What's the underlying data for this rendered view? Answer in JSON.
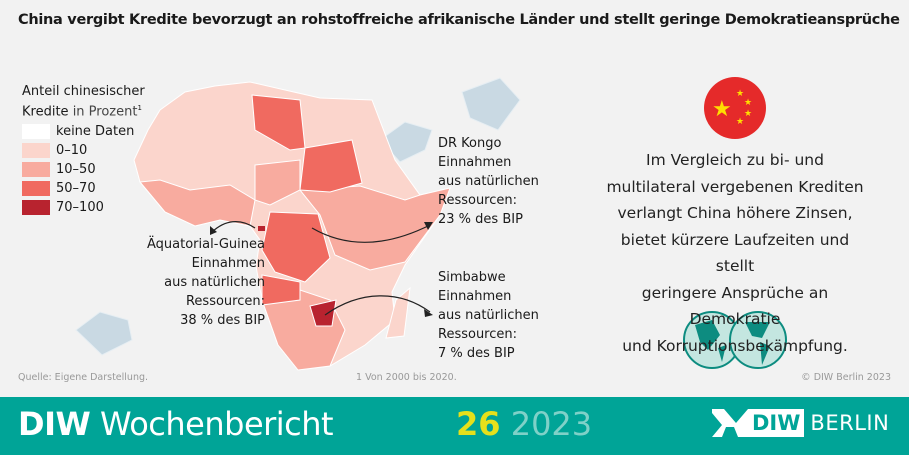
{
  "title": "China vergibt Kredite bevorzugt an rohstoffreiche afrikanische Länder und stellt geringe Demokratieansprüche",
  "legend": {
    "title_bold": "Anteil chinesischer",
    "title_line2": "Kredite",
    "title_unit": "in Prozent",
    "title_footnote": "1",
    "items": [
      {
        "label": "keine Daten",
        "color": "#ffffff"
      },
      {
        "label": "0–10",
        "color": "#fbd5cc"
      },
      {
        "label": "10–50",
        "color": "#f8ab9f"
      },
      {
        "label": "50–70",
        "color": "#f06a60"
      },
      {
        "label": "70–100",
        "color": "#b8232f"
      }
    ]
  },
  "annotations": {
    "eq_guinea": {
      "name": "Äquatorial-Guinea",
      "l1": "Einnahmen",
      "l2": "aus natürlichen",
      "l3": "Ressourcen:",
      "value": "38 % des BIP"
    },
    "dr_congo": {
      "name": "DR Kongo",
      "l1": "Einnahmen",
      "l2": "aus natürlichen",
      "l3": "Ressourcen:",
      "value": "23 % des BIP"
    },
    "zimbabwe": {
      "name": "Simbabwe",
      "l1": "Einnahmen",
      "l2": "aus natürlichen",
      "l3": "Ressourcen:",
      "value": "7 % des BIP"
    }
  },
  "china_text": [
    "Im Vergleich zu bi- und",
    "multilateral vergebenen Krediten",
    "verlangt China höhere Zinsen,",
    "bietet kürzere Laufzeiten und stellt",
    "geringere Ansprüche an Demokratie",
    "und Korruptionsbekämpfung."
  ],
  "source": "Quelle: Eigene Darstellung.",
  "footnote": "1  Von 2000 bis 2020.",
  "copyright": "© DIW Berlin 2023",
  "footer": {
    "brand_bold": "DIW",
    "brand_rest": "Wochenbericht",
    "issue": "26",
    "year": "2023",
    "logo_diw": "DIW",
    "logo_berlin": "BERLIN"
  },
  "colors": {
    "teal": "#00a497",
    "flag_red": "#e52a2a",
    "flag_yellow": "#ffde00",
    "diamond": "#c9d9e3"
  }
}
